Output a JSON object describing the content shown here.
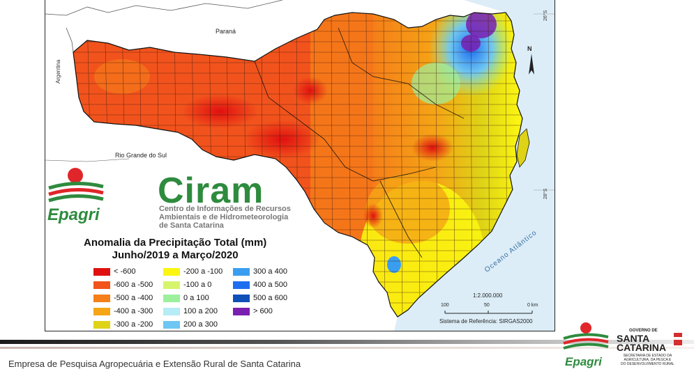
{
  "map": {
    "labels": {
      "parana": "Paraná",
      "argentina": "Argentina",
      "rio_grande_do_sul": "Rio Grande do Sul",
      "ocean": "Oceano Atlântico",
      "north": "N",
      "lat_26": "26°S",
      "lat_28": "28°S"
    },
    "scale": {
      "ratio": "1:2.000.000",
      "ticks": [
        "100",
        "50",
        "0 km"
      ],
      "reference": "Sistema de Referência: SIRGAS2000"
    }
  },
  "logo": {
    "ciram": "Ciram",
    "epagri": "Epagri",
    "subtitle_lines": [
      "Centro de Informações de Recursos",
      "Ambientais e de Hidrometeorologia",
      "de Santa Catarina"
    ]
  },
  "legend": {
    "title_line1": "Anomalia da Precipitação Total  (mm)",
    "title_line2": "Junho/2019 a Março/2020",
    "items": [
      {
        "label": "< -600",
        "color": "#e01010"
      },
      {
        "label": "-600 a -500",
        "color": "#f2531c"
      },
      {
        "label": "-500 a -400",
        "color": "#f57f19"
      },
      {
        "label": "-400 a -300",
        "color": "#f5a515"
      },
      {
        "label": "-300 a -200",
        "color": "#ded316"
      },
      {
        "label": "-200 a -100",
        "color": "#fbf511"
      },
      {
        "label": "-100 a 0",
        "color": "#d6f56c"
      },
      {
        "label": "0 a 100",
        "color": "#9cf09c"
      },
      {
        "label": "100 a 200",
        "color": "#b5ecf5"
      },
      {
        "label": "200 a 300",
        "color": "#6ec6f2"
      },
      {
        "label": "300 a 400",
        "color": "#3a9ef0"
      },
      {
        "label": "400 a 500",
        "color": "#1e6ef0"
      },
      {
        "label": "500 a 600",
        "color": "#0f4fb8"
      },
      {
        "label": "> 600",
        "color": "#7a1fb0"
      }
    ]
  },
  "footer": {
    "text": "Empresa de Pesquisa Agropecuária e Extensão Rural de Santa Catarina",
    "epagri_logo": "Epagri",
    "governo_logo": {
      "line1": "GOVERNO DE",
      "line2": "SANTA",
      "line3": "CATARINA",
      "line4": "SECRETARIA DE ESTADO DA",
      "line5": "AGRICULTURA, DA PESCA E",
      "line6": "DO DESENVOLVIMENTO RURAL"
    }
  }
}
